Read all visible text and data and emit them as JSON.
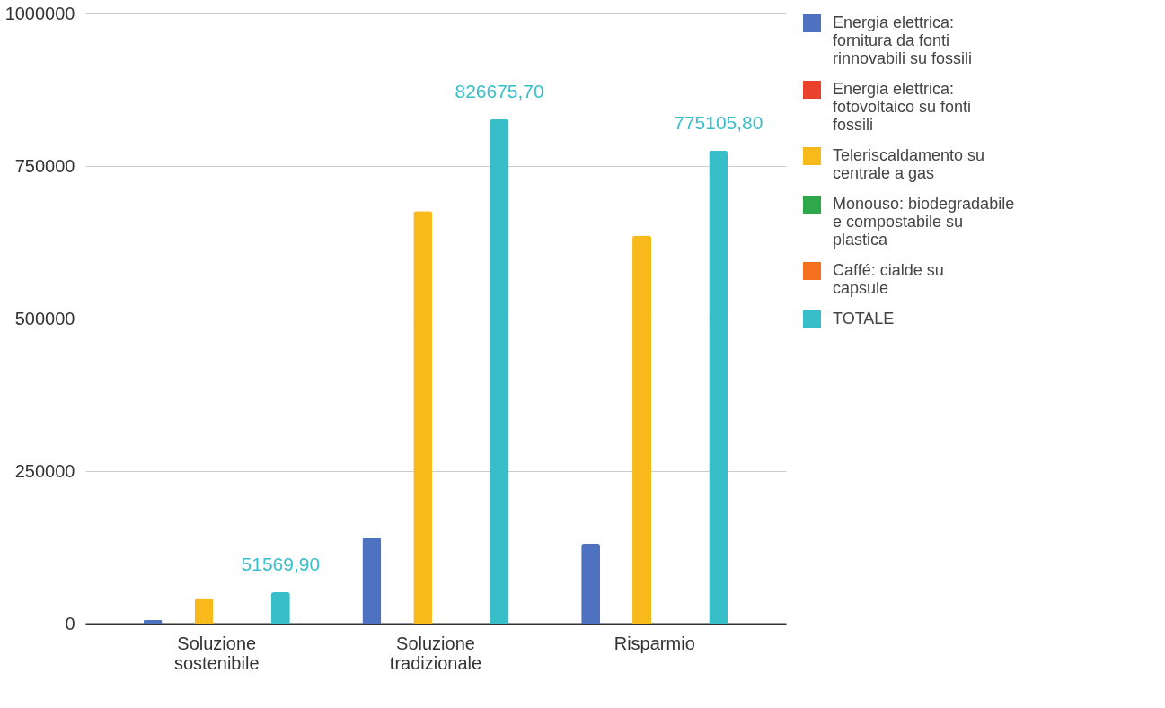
{
  "chart_data": {
    "type": "bar",
    "categories": [
      "Soluzione sostenibile",
      "Soluzione tradizionale",
      "Risparmio"
    ],
    "series": [
      {
        "name": "Energia elettrica: fornitura da fonti rinnovabili su fossili",
        "color": "#4e72c0",
        "values": [
          6000,
          141000,
          131000
        ]
      },
      {
        "name": "Energia elettrica: fotovoltaico su fonti fossili",
        "color": "#e8412c",
        "values": [
          0,
          0,
          0
        ]
      },
      {
        "name": "Teleriscaldamento su centrale a gas",
        "color": "#f8b91a",
        "values": [
          42000,
          676000,
          636000
        ]
      },
      {
        "name": "Monouso: biodegradabile e compostabile su plastica",
        "color": "#2ea84a",
        "values": [
          0,
          0,
          0
        ]
      },
      {
        "name": "Caffé: cialde su capsule",
        "color": "#f4701f",
        "values": [
          0,
          0,
          0
        ]
      },
      {
        "name": "TOTALE",
        "color": "#38bec8",
        "values": [
          51569.9,
          826675.7,
          775105.8
        ],
        "value_labels": [
          "51569,90",
          "826675,70",
          "775105,80"
        ]
      }
    ],
    "ylim": [
      0,
      1000000
    ],
    "yticks": [
      0,
      250000,
      500000,
      750000,
      1000000
    ],
    "grid": "y",
    "legend": "right"
  }
}
